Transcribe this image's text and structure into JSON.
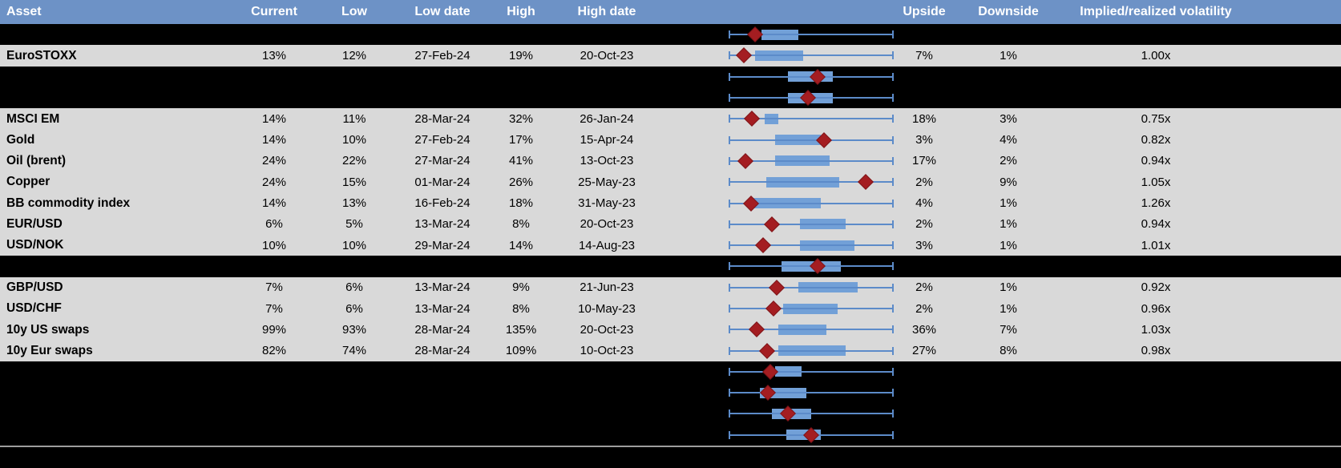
{
  "header": {
    "columns": [
      "Asset",
      "Current",
      "Low",
      "Low date",
      "High",
      "High date",
      "Upside",
      "Downside",
      "Implied/realized volatility"
    ]
  },
  "colors": {
    "header_bg": "#6d92c6",
    "header_text": "#ffffff",
    "row_gray": "#d9d9d9",
    "row_black": "#000000",
    "box_fill": "#72a0d7",
    "whisker": "#5c8bc9",
    "marker": "#a41d21",
    "marker_border": "#7d1317",
    "separator": "#9d9d9d",
    "text": "#000000"
  },
  "chart_data": {
    "type": "table",
    "note": "Implied volatility summary table; each row also shows a horizontal box plot normalized to the asset's low-high range (whiskers 0-1, blue box = mid range band, red diamond = current level)",
    "columns": [
      "Asset",
      "Current",
      "Low",
      "Low date",
      "High",
      "High date",
      "Upside",
      "Downside",
      "Implied/realized volatility"
    ],
    "rows": [
      {
        "kind": "chart",
        "plot": {
          "box_lo": 0.2,
          "box_hi": 0.42,
          "marker": 0.16
        }
      },
      {
        "kind": "data",
        "asset": "EuroSTOXX",
        "current": "13%",
        "low": "12%",
        "low_date": "27-Feb-24",
        "high": "19%",
        "high_date": "20-Oct-23",
        "upside": "7%",
        "downside": "1%",
        "impl_real": "1.00x",
        "plot": {
          "box_lo": 0.16,
          "box_hi": 0.45,
          "marker": 0.09
        }
      },
      {
        "kind": "chart",
        "plot": {
          "box_lo": 0.36,
          "box_hi": 0.63,
          "marker": 0.54
        }
      },
      {
        "kind": "chart",
        "plot": {
          "box_lo": 0.36,
          "box_hi": 0.63,
          "marker": 0.48
        }
      },
      {
        "kind": "data",
        "asset": "MSCI EM",
        "current": "14%",
        "low": "11%",
        "low_date": "28-Mar-24",
        "high": "32%",
        "high_date": "26-Jan-24",
        "upside": "18%",
        "downside": "3%",
        "impl_real": "0.75x",
        "plot": {
          "box_lo": 0.22,
          "box_hi": 0.3,
          "marker": 0.14
        }
      },
      {
        "kind": "data",
        "asset": "Gold",
        "current": "14%",
        "low": "10%",
        "low_date": "27-Feb-24",
        "high": "17%",
        "high_date": "15-Apr-24",
        "upside": "3%",
        "downside": "4%",
        "impl_real": "0.82x",
        "plot": {
          "box_lo": 0.28,
          "box_hi": 0.56,
          "marker": 0.58
        }
      },
      {
        "kind": "data",
        "asset": "Oil (brent)",
        "current": "24%",
        "low": "22%",
        "low_date": "27-Mar-24",
        "high": "41%",
        "high_date": "13-Oct-23",
        "upside": "17%",
        "downside": "2%",
        "impl_real": "0.94x",
        "plot": {
          "box_lo": 0.28,
          "box_hi": 0.61,
          "marker": 0.1
        }
      },
      {
        "kind": "data",
        "asset": "Copper",
        "current": "24%",
        "low": "15%",
        "low_date": "01-Mar-24",
        "high": "26%",
        "high_date": "25-May-23",
        "upside": "2%",
        "downside": "9%",
        "impl_real": "1.05x",
        "plot": {
          "box_lo": 0.23,
          "box_hi": 0.67,
          "marker": 0.83
        }
      },
      {
        "kind": "data",
        "asset": "BB commodity index",
        "current": "14%",
        "low": "13%",
        "low_date": "16-Feb-24",
        "high": "18%",
        "high_date": "31-May-23",
        "upside": "4%",
        "downside": "1%",
        "impl_real": "1.26x",
        "plot": {
          "box_lo": 0.13,
          "box_hi": 0.56,
          "marker": 0.135
        }
      },
      {
        "kind": "data",
        "asset": "EUR/USD",
        "current": "6%",
        "low": "5%",
        "low_date": "13-Mar-24",
        "high": "8%",
        "high_date": "20-Oct-23",
        "upside": "2%",
        "downside": "1%",
        "impl_real": "0.94x",
        "plot": {
          "box_lo": 0.43,
          "box_hi": 0.71,
          "marker": 0.26
        }
      },
      {
        "kind": "data",
        "asset": "USD/NOK",
        "current": "10%",
        "low": "10%",
        "low_date": "29-Mar-24",
        "high": "14%",
        "high_date": "14-Aug-23",
        "upside": "3%",
        "downside": "1%",
        "impl_real": "1.01x",
        "plot": {
          "box_lo": 0.43,
          "box_hi": 0.76,
          "marker": 0.21
        }
      },
      {
        "kind": "chart",
        "plot": {
          "box_lo": 0.32,
          "box_hi": 0.68,
          "marker": 0.54
        }
      },
      {
        "kind": "data",
        "asset": "GBP/USD",
        "current": "7%",
        "low": "6%",
        "low_date": "13-Mar-24",
        "high": "9%",
        "high_date": "21-Jun-23",
        "upside": "2%",
        "downside": "1%",
        "impl_real": "0.92x",
        "plot": {
          "box_lo": 0.42,
          "box_hi": 0.78,
          "marker": 0.29
        }
      },
      {
        "kind": "data",
        "asset": "USD/CHF",
        "current": "7%",
        "low": "6%",
        "low_date": "13-Mar-24",
        "high": "8%",
        "high_date": "10-May-23",
        "upside": "2%",
        "downside": "1%",
        "impl_real": "0.96x",
        "plot": {
          "box_lo": 0.33,
          "box_hi": 0.66,
          "marker": 0.27
        }
      },
      {
        "kind": "data",
        "asset": "10y US swaps",
        "current": "99%",
        "low": "93%",
        "low_date": "28-Mar-24",
        "high": "135%",
        "high_date": "20-Oct-23",
        "upside": "36%",
        "downside": "7%",
        "impl_real": "1.03x",
        "plot": {
          "box_lo": 0.3,
          "box_hi": 0.59,
          "marker": 0.17
        }
      },
      {
        "kind": "data",
        "asset": "10y Eur swaps",
        "current": "82%",
        "low": "74%",
        "low_date": "28-Mar-24",
        "high": "109%",
        "high_date": "10-Oct-23",
        "upside": "27%",
        "downside": "8%",
        "impl_real": "0.98x",
        "plot": {
          "box_lo": 0.3,
          "box_hi": 0.71,
          "marker": 0.235
        }
      },
      {
        "kind": "chart",
        "plot": {
          "box_lo": 0.28,
          "box_hi": 0.44,
          "marker": 0.25
        }
      },
      {
        "kind": "chart",
        "plot": {
          "box_lo": 0.19,
          "box_hi": 0.47,
          "marker": 0.24
        }
      },
      {
        "kind": "chart",
        "plot": {
          "box_lo": 0.26,
          "box_hi": 0.5,
          "marker": 0.36
        }
      },
      {
        "kind": "chart",
        "plot": {
          "box_lo": 0.35,
          "box_hi": 0.56,
          "marker": 0.5
        }
      }
    ]
  }
}
